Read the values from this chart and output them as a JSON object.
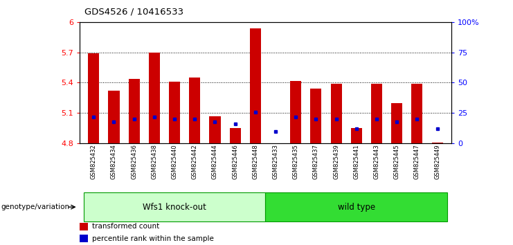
{
  "title": "GDS4526 / 10416533",
  "samples": [
    "GSM825432",
    "GSM825434",
    "GSM825436",
    "GSM825438",
    "GSM825440",
    "GSM825442",
    "GSM825444",
    "GSM825446",
    "GSM825448",
    "GSM825433",
    "GSM825435",
    "GSM825437",
    "GSM825439",
    "GSM825441",
    "GSM825443",
    "GSM825445",
    "GSM825447",
    "GSM825449"
  ],
  "transformed_counts": [
    5.69,
    5.32,
    5.44,
    5.7,
    5.41,
    5.45,
    5.07,
    4.95,
    5.94,
    4.8,
    5.42,
    5.34,
    5.39,
    4.95,
    5.39,
    5.2,
    5.39,
    4.81
  ],
  "percentile_ranks": [
    22,
    18,
    20,
    22,
    20,
    20,
    18,
    16,
    26,
    10,
    22,
    20,
    20,
    12,
    20,
    18,
    20,
    12
  ],
  "base_value": 4.8,
  "ylim_left": [
    4.8,
    6.0
  ],
  "ylim_right": [
    0,
    100
  ],
  "yticks_left": [
    4.8,
    5.1,
    5.4,
    5.7,
    6.0
  ],
  "ytick_labels_left": [
    "4.8",
    "5.1",
    "5.4",
    "5.7",
    "6"
  ],
  "yticks_right": [
    0,
    25,
    50,
    75,
    100
  ],
  "ytick_labels_right": [
    "0",
    "25",
    "50",
    "75",
    "100%"
  ],
  "grid_lines": [
    5.1,
    5.4,
    5.7
  ],
  "groups": [
    {
      "label": "Wfs1 knock-out",
      "indices": [
        0,
        1,
        2,
        3,
        4,
        5,
        6,
        7,
        8
      ],
      "color_face": "#ccffcc",
      "color_edge": "#009900"
    },
    {
      "label": "wild type",
      "indices": [
        9,
        10,
        11,
        12,
        13,
        14,
        15,
        16,
        17
      ],
      "color_face": "#33dd33",
      "color_edge": "#009900"
    }
  ],
  "bar_color": "#cc0000",
  "blue_color": "#0000cc",
  "bar_width": 0.55,
  "genotype_label": "genotype/variation",
  "legend_items": [
    {
      "label": "transformed count",
      "color": "#cc0000"
    },
    {
      "label": "percentile rank within the sample",
      "color": "#0000cc"
    }
  ],
  "bg_color": "#f0f0f0"
}
